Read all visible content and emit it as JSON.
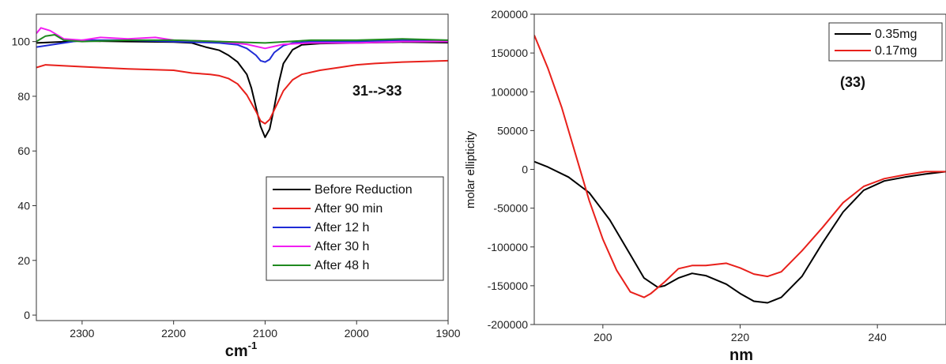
{
  "chart_data": [
    {
      "type": "line",
      "title": "",
      "xlabel": "cm",
      "xlabel_sup": "-1",
      "ylabel": "",
      "xlim": [
        2350,
        1900
      ],
      "ylim": [
        -2,
        110
      ],
      "xticks": [
        2300,
        2200,
        2100,
        2000,
        1900
      ],
      "yticks": [
        0,
        20,
        40,
        60,
        80,
        100
      ],
      "annotation": "31-->33",
      "legend_position": "bottom-right",
      "series": [
        {
          "name": "Before Reduction",
          "color": "#000000",
          "x": [
            2350,
            2300,
            2250,
            2200,
            2180,
            2165,
            2150,
            2140,
            2130,
            2120,
            2115,
            2110,
            2105,
            2100,
            2095,
            2090,
            2085,
            2080,
            2070,
            2060,
            2040,
            2000,
            1950,
            1900
          ],
          "y": [
            99.5,
            100.2,
            100,
            99.8,
            99.5,
            98,
            96.8,
            95,
            92.5,
            88,
            83,
            76,
            69,
            65,
            68,
            76,
            85,
            92,
            97,
            98.8,
            99.3,
            99.5,
            99.8,
            99.6
          ]
        },
        {
          "name": "After 90 min",
          "color": "#e8201b",
          "x": [
            2350,
            2340,
            2300,
            2250,
            2200,
            2180,
            2160,
            2150,
            2140,
            2130,
            2120,
            2110,
            2105,
            2100,
            2095,
            2090,
            2080,
            2070,
            2060,
            2040,
            2020,
            2000,
            1980,
            1950,
            1900
          ],
          "y": [
            90.5,
            91.5,
            90.8,
            90,
            89.5,
            88.5,
            88,
            87.5,
            86.5,
            84.5,
            80.5,
            74.5,
            71,
            70,
            71.5,
            75,
            82,
            86,
            88,
            89.5,
            90.5,
            91.5,
            92,
            92.5,
            93
          ]
        },
        {
          "name": "After 12 h",
          "color": "#1f2bd6",
          "x": [
            2350,
            2300,
            2250,
            2200,
            2150,
            2130,
            2120,
            2110,
            2105,
            2100,
            2095,
            2090,
            2080,
            2070,
            2050,
            2000,
            1950,
            1900
          ],
          "y": [
            98,
            100.5,
            100.5,
            100,
            99.5,
            98.8,
            97.5,
            95,
            93,
            92.5,
            93.5,
            96,
            98.5,
            99.5,
            100,
            100,
            100.5,
            100
          ]
        },
        {
          "name": "After 30 h",
          "color": "#f21df2",
          "x": [
            2350,
            2345,
            2335,
            2320,
            2300,
            2280,
            2250,
            2220,
            2200,
            2150,
            2120,
            2100,
            2080,
            2050,
            2000,
            1950,
            1900
          ],
          "y": [
            103,
            105,
            104,
            101,
            100.5,
            101.5,
            101,
            101.5,
            100.5,
            100,
            99,
            97.5,
            99,
            99.5,
            99.5,
            100,
            100
          ]
        },
        {
          "name": "After 48 h",
          "color": "#1f8a1f",
          "x": [
            2350,
            2340,
            2330,
            2320,
            2300,
            2250,
            2200,
            2150,
            2100,
            2050,
            2000,
            1950,
            1900
          ],
          "y": [
            100,
            102,
            102.5,
            100.5,
            100,
            100.5,
            100.5,
            100,
            99.5,
            100.5,
            100.5,
            101,
            100.5
          ]
        }
      ]
    },
    {
      "type": "line",
      "title": "",
      "xlabel": "nm",
      "ylabel": "molar ellipticity",
      "xlim": [
        190,
        250
      ],
      "ylim": [
        -200000,
        200000
      ],
      "xticks": [
        200,
        220,
        240
      ],
      "yticks": [
        -200000,
        -150000,
        -100000,
        -50000,
        0,
        50000,
        100000,
        150000,
        200000
      ],
      "annotation": "(33)",
      "legend_position": "top-right",
      "series": [
        {
          "name": "0.35mg",
          "color": "#000000",
          "x": [
            190,
            192,
            195,
            198,
            201,
            204,
            206,
            208,
            209,
            211,
            213,
            215,
            218,
            220,
            222,
            224,
            226,
            229,
            232,
            235,
            238,
            241,
            244,
            247,
            250
          ],
          "y": [
            10000,
            3000,
            -10000,
            -30000,
            -65000,
            -110000,
            -140000,
            -152000,
            -150000,
            -140000,
            -134000,
            -137000,
            -148000,
            -160000,
            -170000,
            -172000,
            -165000,
            -138000,
            -95000,
            -55000,
            -27000,
            -15000,
            -10000,
            -6000,
            -3000
          ]
        },
        {
          "name": "0.17mg",
          "color": "#e8201b",
          "x": [
            190,
            192,
            194,
            196,
            198,
            200,
            202,
            204,
            206,
            207,
            209,
            211,
            213,
            215,
            218,
            220,
            222,
            224,
            226,
            229,
            232,
            235,
            238,
            241,
            244,
            247,
            250
          ],
          "y": [
            173000,
            130000,
            80000,
            20000,
            -40000,
            -90000,
            -130000,
            -158000,
            -165000,
            -160000,
            -145000,
            -128000,
            -124000,
            -124000,
            -121000,
            -127000,
            -135000,
            -138000,
            -132000,
            -105000,
            -75000,
            -43000,
            -22000,
            -12000,
            -7000,
            -3000,
            -3000
          ]
        }
      ]
    }
  ]
}
